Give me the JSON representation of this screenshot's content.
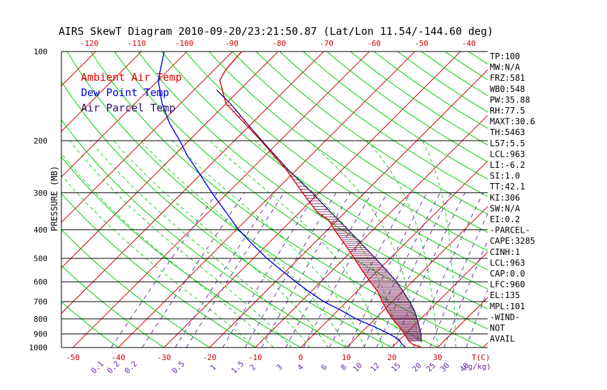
{
  "chart_data": {
    "type": "line",
    "title": "AIRS SkewT Diagram 2010-09-20/23:21:50.87 (Lat/Lon 11.54/-144.60 deg)",
    "ylabel": "PRESSURE (MB)",
    "xlabel_unit": "T(C)",
    "mixing_ratio_unit": "(g/kg)",
    "y_scale": "log",
    "ylim": [
      1000,
      100
    ],
    "pressure_ticks": [
      100,
      200,
      300,
      400,
      500,
      600,
      700,
      800,
      900,
      1000
    ],
    "bottom_temp_ticks": [
      -50,
      -40,
      -30,
      -20,
      -10,
      0,
      10,
      20,
      30
    ],
    "top_temp_ticks": [
      -120,
      -110,
      -100,
      -90,
      -80,
      -70,
      -60,
      -50,
      -40
    ],
    "mixing_ratio_labels": [
      "0.1",
      "0.2",
      "0.2",
      "0.5",
      "1",
      "1.5",
      "2",
      "3",
      "4",
      "6",
      "8",
      "10",
      "12",
      "15",
      "20",
      "25",
      "30",
      "40"
    ],
    "series": [
      {
        "name": "Ambient Air Temp",
        "color": "#e00000",
        "points": [
          {
            "p": 1000,
            "t": 26.5
          },
          {
            "p": 975,
            "t": 23.8
          },
          {
            "p": 950,
            "t": 22.2
          },
          {
            "p": 925,
            "t": 21.0
          },
          {
            "p": 900,
            "t": 19.8
          },
          {
            "p": 850,
            "t": 17.0
          },
          {
            "p": 800,
            "t": 13.8
          },
          {
            "p": 750,
            "t": 10.8
          },
          {
            "p": 700,
            "t": 7.8
          },
          {
            "p": 650,
            "t": 4.8
          },
          {
            "p": 600,
            "t": 0.8
          },
          {
            "p": 550,
            "t": -3.4
          },
          {
            "p": 500,
            "t": -7.8
          },
          {
            "p": 450,
            "t": -12.8
          },
          {
            "p": 400,
            "t": -18.5
          },
          {
            "p": 370,
            "t": -22.0
          },
          {
            "p": 350,
            "t": -26.0
          },
          {
            "p": 300,
            "t": -33.6
          },
          {
            "p": 250,
            "t": -42.4
          },
          {
            "p": 225,
            "t": -48.0
          },
          {
            "p": 200,
            "t": -54.2
          },
          {
            "p": 175,
            "t": -61.5
          },
          {
            "p": 150,
            "t": -70.0
          },
          {
            "p": 125,
            "t": -76.5
          },
          {
            "p": 115,
            "t": -77.5
          },
          {
            "p": 100,
            "t": -78.0
          }
        ]
      },
      {
        "name": "Dew Point Temp",
        "color": "#0000e0",
        "points": [
          {
            "p": 1000,
            "t": 23.0
          },
          {
            "p": 975,
            "t": 21.5
          },
          {
            "p": 950,
            "t": 20.3
          },
          {
            "p": 925,
            "t": 18.6
          },
          {
            "p": 900,
            "t": 16.5
          },
          {
            "p": 850,
            "t": 11.5
          },
          {
            "p": 800,
            "t": 5.8
          },
          {
            "p": 750,
            "t": 0.8
          },
          {
            "p": 700,
            "t": -5.0
          },
          {
            "p": 650,
            "t": -10.2
          },
          {
            "p": 600,
            "t": -15.5
          },
          {
            "p": 550,
            "t": -21.0
          },
          {
            "p": 500,
            "t": -27.0
          },
          {
            "p": 450,
            "t": -33.0
          },
          {
            "p": 400,
            "t": -39.5
          },
          {
            "p": 350,
            "t": -46.0
          },
          {
            "p": 300,
            "t": -53.5
          },
          {
            "p": 250,
            "t": -62.0
          },
          {
            "p": 225,
            "t": -67.0
          },
          {
            "p": 200,
            "t": -72.0
          },
          {
            "p": 175,
            "t": -78.0
          },
          {
            "p": 150,
            "t": -84.0
          },
          {
            "p": 125,
            "t": -90.0
          },
          {
            "p": 100,
            "t": -95.0
          }
        ]
      },
      {
        "name": "Air Parcel Temp",
        "color": "#2a0a6a",
        "points": [
          {
            "p": 960,
            "t": 25.3
          },
          {
            "p": 925,
            "t": 24.2
          },
          {
            "p": 900,
            "t": 23.4
          },
          {
            "p": 850,
            "t": 21.4
          },
          {
            "p": 800,
            "t": 19.2
          },
          {
            "p": 750,
            "t": 16.8
          },
          {
            "p": 700,
            "t": 13.8
          },
          {
            "p": 650,
            "t": 10.4
          },
          {
            "p": 600,
            "t": 6.6
          },
          {
            "p": 550,
            "t": 2.0
          },
          {
            "p": 500,
            "t": -3.2
          },
          {
            "p": 450,
            "t": -9.0
          },
          {
            "p": 400,
            "t": -15.5
          },
          {
            "p": 350,
            "t": -23.0
          },
          {
            "p": 300,
            "t": -31.5
          },
          {
            "p": 250,
            "t": -42.0
          },
          {
            "p": 200,
            "t": -54.0
          },
          {
            "p": 175,
            "t": -61.0
          },
          {
            "p": 150,
            "t": -69.0
          },
          {
            "p": 135,
            "t": -75.0
          }
        ]
      }
    ],
    "legend_position": "top-left",
    "grid": true
  },
  "indices": [
    "TP:100",
    "MW:N/A",
    "FRZ:581",
    "WB0:548",
    "PW:35.88",
    "RH:77.5",
    "MAXT:30.6",
    "TH:5463",
    "L57:5.5",
    "LCL:963",
    "LI:-6.2",
    "SI:1.0",
    "TT:42.1",
    "KI:306",
    "SW:N/A",
    "EI:0.2",
    "-PARCEL-",
    "CAPE:3285",
    "CINH:1",
    "LCL:963",
    "CAP:0.0",
    "LFC:960",
    "EL:135",
    "MPL:101",
    "-WIND-",
    "NOT",
    "AVAIL"
  ],
  "colors": {
    "isotherm": "#d00000",
    "dry_adiabat": "#00cc00",
    "moist_adiabat": "#00cc00",
    "mixing_ratio": "#6a2aa8",
    "isobar": "#000000",
    "top_axis_labels": "#d00000",
    "bottom_axis_labels": "#d00000",
    "hatch": "#7a2a5a"
  }
}
